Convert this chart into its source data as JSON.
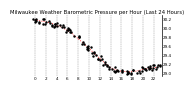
{
  "title": "Milwaukee Weather Barometric Pressure per Hour (Last 24 Hours)",
  "background_color": "#ffffff",
  "grid_color": "#888888",
  "line_color": "#ff0000",
  "marker_color": "#000000",
  "hours": [
    0,
    1,
    2,
    3,
    4,
    5,
    6,
    7,
    8,
    9,
    10,
    11,
    12,
    13,
    14,
    15,
    16,
    17,
    18,
    19,
    20,
    21,
    22,
    23
  ],
  "pressure": [
    30.18,
    30.15,
    30.13,
    30.1,
    30.06,
    30.01,
    29.94,
    29.86,
    29.76,
    29.66,
    29.55,
    29.44,
    29.33,
    29.22,
    29.13,
    29.08,
    29.05,
    29.04,
    29.04,
    29.06,
    29.09,
    29.11,
    29.13,
    29.15
  ],
  "ylim": [
    28.95,
    30.28
  ],
  "ytick_values": [
    29.0,
    29.2,
    29.4,
    29.6,
    29.8,
    30.0,
    30.2
  ],
  "xtick_values": [
    0,
    2,
    4,
    6,
    8,
    10,
    12,
    14,
    16,
    18,
    20,
    22
  ],
  "xtick_labels": [
    "0",
    "2",
    "4",
    "6",
    "8",
    "10",
    "12",
    "14",
    "16",
    "18",
    "20",
    "22"
  ],
  "title_fontsize": 3.8,
  "tick_fontsize": 3.0,
  "line_width": 0.6,
  "marker_size": 1.5,
  "scatter_seed": 42
}
